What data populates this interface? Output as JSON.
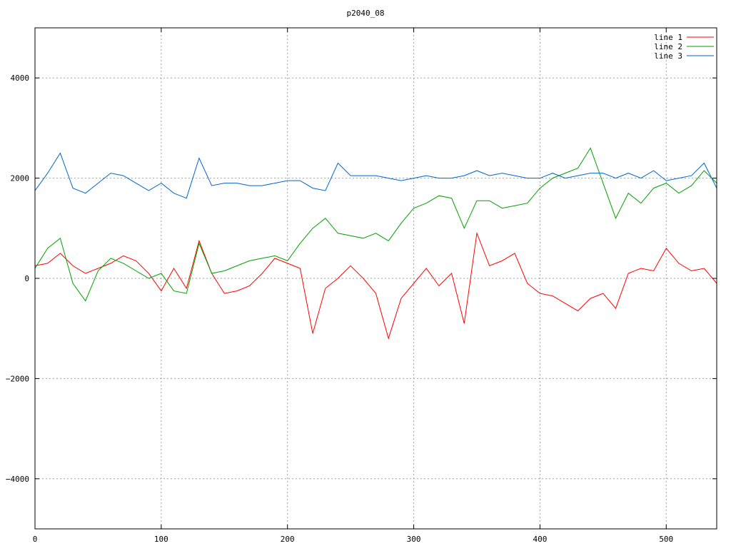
{
  "chart_data": {
    "type": "line",
    "title": "p2040_08",
    "xlabel": "",
    "ylabel": "",
    "xlim": [
      0,
      540
    ],
    "ylim": [
      -5000,
      5000
    ],
    "x_ticks": [
      0,
      100,
      200,
      300,
      400,
      500
    ],
    "y_ticks": [
      -4000,
      -2000,
      0,
      2000,
      4000
    ],
    "x_tick_labels": [
      "0",
      "100",
      "200",
      "300",
      "400",
      "500"
    ],
    "y_tick_labels": [
      "−4000",
      "−2000",
      "0",
      "2000",
      "4000"
    ],
    "grid": true,
    "legend_position": "top-right",
    "x": [
      0,
      10,
      20,
      30,
      40,
      50,
      60,
      70,
      80,
      90,
      100,
      110,
      120,
      130,
      140,
      150,
      160,
      170,
      180,
      190,
      200,
      210,
      220,
      230,
      240,
      250,
      260,
      270,
      280,
      290,
      300,
      310,
      320,
      330,
      340,
      350,
      360,
      370,
      380,
      390,
      400,
      410,
      420,
      430,
      440,
      450,
      460,
      470,
      480,
      490,
      500,
      510,
      520,
      530,
      540
    ],
    "series": [
      {
        "name": "line 1",
        "color": "#ff0000",
        "values": [
          250,
          300,
          500,
          250,
          100,
          200,
          300,
          450,
          350,
          100,
          -250,
          200,
          -200,
          750,
          100,
          -300,
          -250,
          -150,
          100,
          400,
          300,
          200,
          -1100,
          -200,
          0,
          250,
          0,
          -300,
          -1200,
          -400,
          -100,
          200,
          -150,
          100,
          -900,
          900,
          250,
          350,
          500,
          -100,
          -300,
          -350,
          -500,
          -650,
          -400,
          -300,
          -600,
          100,
          200,
          150,
          600,
          300,
          150,
          200,
          -100
        ]
      },
      {
        "name": "line 2",
        "color": "#00a000",
        "values": [
          200,
          600,
          800,
          -100,
          -450,
          150,
          400,
          300,
          150,
          0,
          100,
          -250,
          -300,
          700,
          100,
          150,
          250,
          350,
          400,
          450,
          350,
          700,
          1000,
          1200,
          900,
          850,
          800,
          900,
          750,
          1100,
          1400,
          1500,
          1650,
          1600,
          1000,
          1550,
          1550,
          1400,
          1450,
          1500,
          1800,
          2000,
          2100,
          2200,
          2600,
          1900,
          1200,
          1700,
          1500,
          1800,
          1900,
          1700,
          1850,
          2150,
          1900
        ]
      },
      {
        "name": "line 3",
        "color": "#0066cc",
        "values": [
          1750,
          2100,
          2500,
          1800,
          1700,
          1900,
          2100,
          2050,
          1900,
          1750,
          1900,
          1700,
          1600,
          2400,
          1850,
          1900,
          1900,
          1850,
          1850,
          1900,
          1950,
          1950,
          1800,
          1750,
          2300,
          2050,
          2050,
          2050,
          2000,
          1950,
          2000,
          2050,
          2000,
          2000,
          2050,
          2150,
          2050,
          2100,
          2050,
          2000,
          2000,
          2100,
          2000,
          2050,
          2100,
          2100,
          2000,
          2100,
          2000,
          2150,
          1950,
          2000,
          2050,
          2300,
          1800
        ]
      }
    ]
  }
}
